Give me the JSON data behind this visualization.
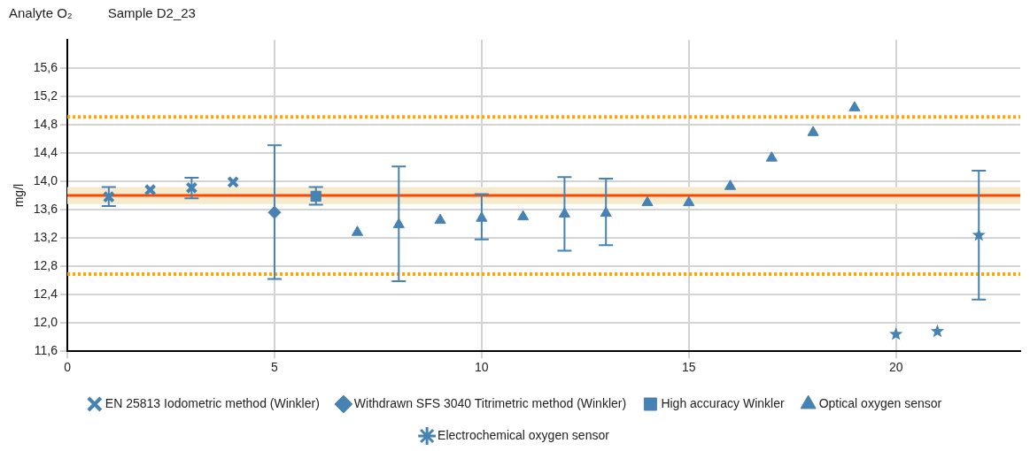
{
  "chart_data": {
    "type": "scatter",
    "title": "Analyte O₂",
    "subtitle": "Sample D2_23",
    "ylabel": "mg/l",
    "xlim": [
      0,
      23
    ],
    "xticks": [
      0,
      5,
      10,
      15,
      20
    ],
    "ylim": [
      11.6,
      16.0
    ],
    "yticks": [
      {
        "value": 11.6,
        "label": "11,6"
      },
      {
        "value": 12.0,
        "label": "12,0"
      },
      {
        "value": 12.4,
        "label": "12,4"
      },
      {
        "value": 12.8,
        "label": "12,8"
      },
      {
        "value": 13.2,
        "label": "13,2"
      },
      {
        "value": 13.6,
        "label": "13,6"
      },
      {
        "value": 14.0,
        "label": "14,0"
      },
      {
        "value": 14.4,
        "label": "14,4"
      },
      {
        "value": 14.8,
        "label": "14,8"
      },
      {
        "value": 15.2,
        "label": "15,2"
      },
      {
        "value": 15.6,
        "label": "15,6"
      }
    ],
    "grid": true,
    "legend": "bottom",
    "series": [
      {
        "name": "EN 25813 Iodometric method (Winkler)",
        "color": "#4682b4",
        "marker": "cross",
        "x": [
          1,
          2,
          3,
          4
        ],
        "values": [
          13.78,
          13.88,
          13.91,
          13.99
        ],
        "errors": [
          [
            13.65,
            13.92
          ],
          null,
          [
            13.76,
            14.05
          ],
          null
        ]
      },
      {
        "name": "Withdrawn SFS 3040 Titrimetric method (Winkler)",
        "color": "#4682b4",
        "marker": "diamond",
        "x": [
          5
        ],
        "values": [
          13.56
        ],
        "errors": [
          [
            12.62,
            14.51
          ]
        ]
      },
      {
        "name": "High accuracy Winkler",
        "color": "#4682b4",
        "marker": "square",
        "x": [
          6
        ],
        "values": [
          13.79
        ],
        "errors": [
          [
            13.67,
            13.92
          ]
        ]
      },
      {
        "name": "Optical oxygen sensor",
        "color": "#4682b4",
        "marker": "triangle",
        "x": [
          7,
          8,
          9,
          10,
          11,
          12,
          13,
          14,
          15,
          16,
          17,
          18,
          19
        ],
        "values": [
          13.28,
          13.39,
          13.45,
          13.48,
          13.5,
          13.54,
          13.55,
          13.7,
          13.7,
          13.93,
          14.33,
          14.69,
          15.04
        ],
        "errors": [
          null,
          [
            12.59,
            14.21
          ],
          null,
          [
            13.18,
            13.82
          ],
          null,
          [
            13.02,
            14.06
          ],
          [
            13.1,
            14.04
          ],
          null,
          null,
          null,
          null,
          null,
          null
        ]
      },
      {
        "name": "Electrochemical oxygen sensor",
        "color": "#4682b4",
        "marker": "star",
        "x": [
          20,
          21,
          22
        ],
        "values": [
          11.84,
          11.88,
          13.24
        ],
        "errors": [
          null,
          null,
          [
            12.33,
            14.15
          ]
        ]
      }
    ],
    "ref_lines": [
      {
        "axis": "y",
        "value": 13.8,
        "color": "#ff4500",
        "line_style": "solid"
      },
      {
        "axis": "y",
        "value": 14.91,
        "color": "#ffa500",
        "line_style": "dotted"
      },
      {
        "axis": "y",
        "value": 12.69,
        "color": "#ffa500",
        "line_style": "dotted"
      }
    ],
    "bands": [
      {
        "axis": "y",
        "from": 13.68,
        "to": 13.92,
        "color": "#f5ebcc"
      }
    ]
  }
}
